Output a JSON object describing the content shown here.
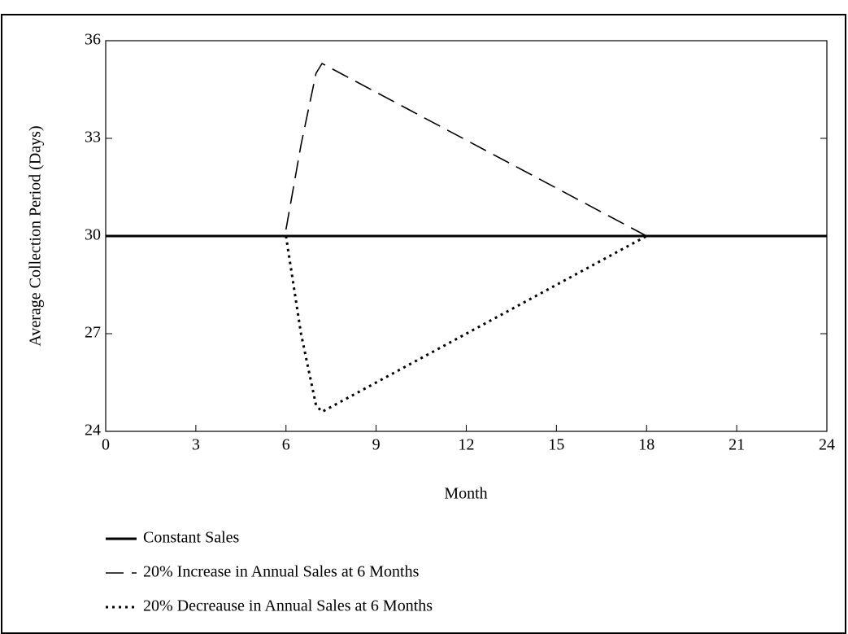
{
  "chart_data": {
    "type": "line",
    "xlabel": "Month",
    "ylabel": "Average Collection Period (Days)",
    "xlim": [
      0,
      24
    ],
    "xticks": [
      0,
      3,
      6,
      9,
      12,
      15,
      18,
      21,
      24
    ],
    "ylim": [
      24,
      36
    ],
    "yticks": [
      24,
      27,
      30,
      33,
      36
    ],
    "series": [
      {
        "name": "Constant Sales",
        "color": "#000000",
        "style": "solid",
        "x": [
          0,
          24
        ],
        "values": [
          30,
          30
        ]
      },
      {
        "name": "20% Increase in Annual Sales at 6 Months",
        "color": "#000000",
        "style": "dashed",
        "x": [
          6,
          6.5,
          7,
          7.2,
          18
        ],
        "values": [
          30.2,
          32.8,
          35.0,
          35.3,
          30
        ]
      },
      {
        "name": "20% Decreause in Annual Sales at 6 Months",
        "color": "#000000",
        "style": "dotted",
        "x": [
          6,
          6.5,
          7,
          7.2,
          18
        ],
        "values": [
          30,
          27.0,
          24.8,
          24.6,
          30
        ]
      }
    ]
  }
}
